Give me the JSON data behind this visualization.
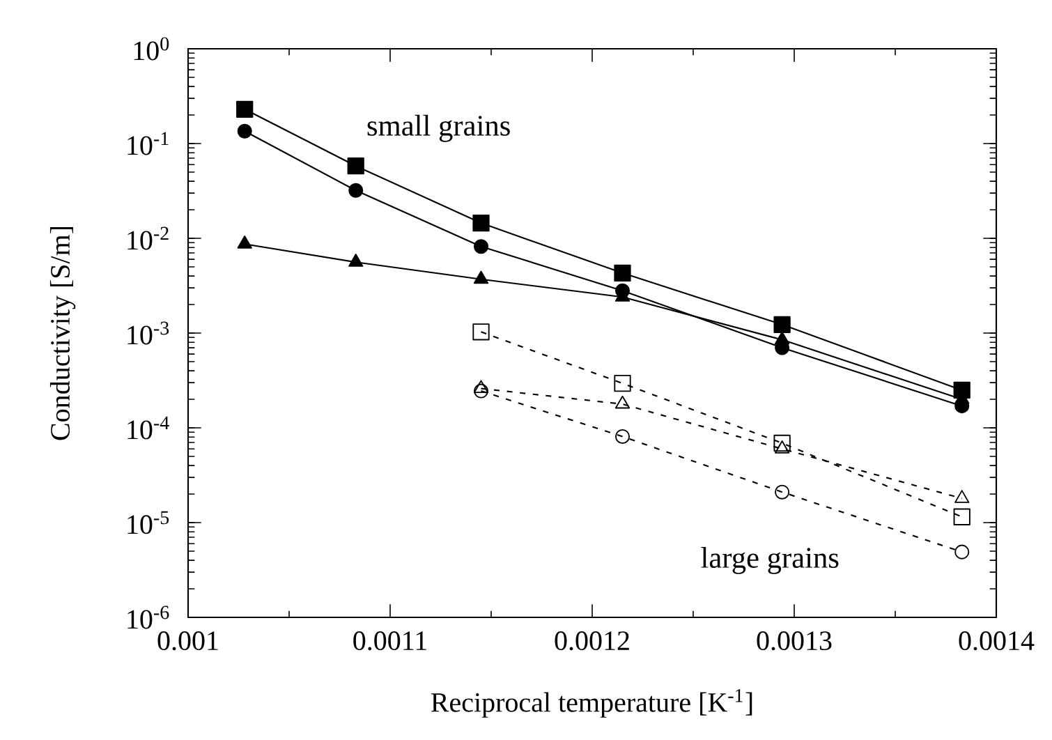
{
  "chart_data": {
    "type": "line",
    "xlabel": "Reciprocal temperature [K$^{-1}$]",
    "ylabel": "Conductivity [S/m]",
    "log": "y",
    "xlim": [
      0.001,
      0.0014
    ],
    "ylim": [
      1e-06,
      1
    ],
    "xticks": [
      {
        "value": 0.001,
        "label": "0.001"
      },
      {
        "value": 0.0011,
        "label": "0.0011"
      },
      {
        "value": 0.0012,
        "label": "0.0012"
      },
      {
        "value": 0.0013,
        "label": "0.0013"
      },
      {
        "value": 0.0014,
        "label": "0.0014"
      }
    ],
    "yticks": [
      {
        "value": 1e-06,
        "label": "10$^{-6}$"
      },
      {
        "value": 1e-05,
        "label": "10$^{-5}$"
      },
      {
        "value": 0.0001,
        "label": "10$^{-4}$"
      },
      {
        "value": 0.001,
        "label": "10$^{-3}$"
      },
      {
        "value": 0.01,
        "label": "10$^{-2}$"
      },
      {
        "value": 0.1,
        "label": "10$^{-1}$"
      },
      {
        "value": 1,
        "label": "10$^{0}$"
      }
    ],
    "grid": false,
    "series": [
      {
        "color": "#000000",
        "marker": "square",
        "line_style": "solid",
        "x": [
          0.001028,
          0.001083,
          0.001145,
          0.001215,
          0.001294,
          0.001383
        ],
        "values": [
          0.23,
          0.058,
          0.0145,
          0.0043,
          0.00123,
          0.00025
        ]
      },
      {
        "color": "#000000",
        "marker": "circle",
        "line_style": "solid",
        "x": [
          0.001028,
          0.001083,
          0.001145,
          0.001215,
          0.001294,
          0.001383
        ],
        "values": [
          0.135,
          0.032,
          0.0082,
          0.0028,
          0.0007,
          0.00017
        ]
      },
      {
        "color": "#000000",
        "marker": "triangle",
        "line_style": "solid",
        "x": [
          0.001028,
          0.001083,
          0.001145,
          0.001215,
          0.001294,
          0.001383
        ],
        "values": [
          0.0087,
          0.0056,
          0.0037,
          0.0024,
          0.00085,
          0.0002
        ]
      },
      {
        "color": "#000000",
        "marker": "square",
        "line_style": "dashed",
        "x": [
          0.001145,
          0.001215,
          0.001294,
          0.001383
        ],
        "values": [
          0.00103,
          0.000295,
          6.9e-05,
          1.15e-05
        ]
      },
      {
        "color": "#000000",
        "marker": "triangle",
        "line_style": "dashed",
        "x": [
          0.001145,
          0.001215,
          0.001294,
          0.001383
        ],
        "values": [
          0.00026,
          0.000178,
          6e-05,
          1.8e-05
        ]
      },
      {
        "color": "#000000",
        "marker": "circle",
        "line_style": "dashed",
        "x": [
          0.001145,
          0.001215,
          0.001294,
          0.001383
        ],
        "values": [
          0.000245,
          8.1e-05,
          2.1e-05,
          4.9e-06
        ]
      }
    ],
    "annotations": [
      "small grains",
      "large grains"
    ]
  }
}
